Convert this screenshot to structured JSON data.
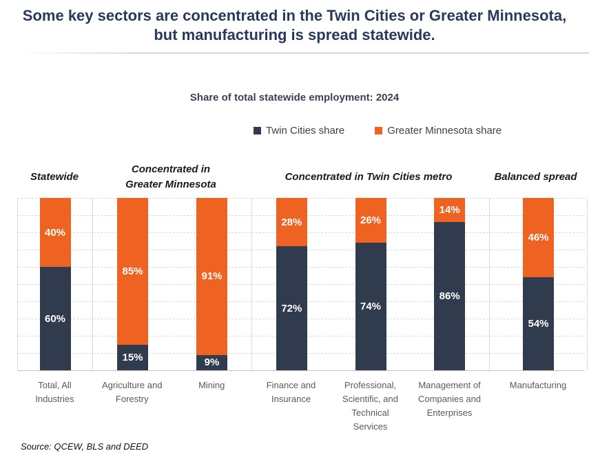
{
  "page": {
    "title": "Some key sectors are concentrated in the Twin Cities or Greater Minnesota, but manufacturing is spread statewide.",
    "source_note": "Source: QCEW, BLS and DEED"
  },
  "chart_data": {
    "type": "bar",
    "variant": "stacked-100-percent",
    "title": "Share of total statewide employment: 2024",
    "unit": "%",
    "ylim": [
      0,
      100
    ],
    "gridlines": "horizontal, dashed, every 10%",
    "legend_position": "top-center",
    "series": [
      {
        "name": "Twin Cities share",
        "color": "#303b4d"
      },
      {
        "name": "Greater Minnesota share",
        "color": "#ee6321"
      }
    ],
    "groups": [
      {
        "header": "Statewide",
        "bars": [
          {
            "category": "Total, All Industries",
            "twin_cities": 60,
            "greater_minnesota": 40,
            "twin_cities_label": "60%",
            "greater_minnesota_label": "40%"
          }
        ]
      },
      {
        "header": "Concentrated in Greater Minnesota",
        "bars": [
          {
            "category": "Agriculture and Forestry",
            "twin_cities": 15,
            "greater_minnesota": 85,
            "twin_cities_label": "15%",
            "greater_minnesota_label": "85%"
          },
          {
            "category": "Mining",
            "twin_cities": 9,
            "greater_minnesota": 91,
            "twin_cities_label": "9%",
            "greater_minnesota_label": "91%"
          }
        ]
      },
      {
        "header": "Concentrated in Twin Cities metro",
        "bars": [
          {
            "category": "Finance and Insurance",
            "twin_cities": 72,
            "greater_minnesota": 28,
            "twin_cities_label": "72%",
            "greater_minnesota_label": "28%"
          },
          {
            "category": "Professional, Scientific, and Technical Services",
            "twin_cities": 74,
            "greater_minnesota": 26,
            "twin_cities_label": "74%",
            "greater_minnesota_label": "26%"
          },
          {
            "category": "Management of Companies and Enterprises",
            "twin_cities": 86,
            "greater_minnesota": 14,
            "twin_cities_label": "86%",
            "greater_minnesota_label": "14%"
          }
        ]
      },
      {
        "header": "Balanced spread",
        "bars": [
          {
            "category": "Manufacturing",
            "twin_cities": 54,
            "greater_minnesota": 46,
            "twin_cities_label": "54%",
            "greater_minnesota_label": "46%"
          }
        ]
      }
    ]
  }
}
